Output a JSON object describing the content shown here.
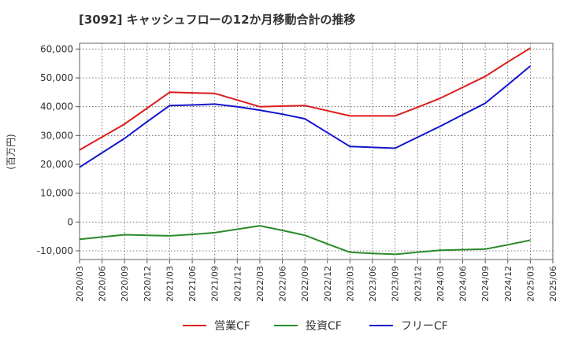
{
  "chart_data": {
    "type": "line",
    "title": "[3092]  キャッシュフローの12か月移動合計の推移",
    "ylabel": "(百万円)",
    "xlabel": "",
    "ylim": [
      -13000,
      62000
    ],
    "yticks": [
      -10000,
      0,
      10000,
      20000,
      30000,
      40000,
      50000,
      60000
    ],
    "ytick_labels": [
      "-10,000",
      "0",
      "10,000",
      "20,000",
      "30,000",
      "40,000",
      "50,000",
      "60,000"
    ],
    "categories": [
      "2020/03",
      "2020/06",
      "2020/09",
      "2020/12",
      "2021/03",
      "2021/06",
      "2021/09",
      "2021/12",
      "2022/03",
      "2022/06",
      "2022/09",
      "2022/12",
      "2023/03",
      "2023/06",
      "2023/09",
      "2023/12",
      "2024/03",
      "2024/06",
      "2024/09",
      "2024/12",
      "2025/03",
      "2025/06"
    ],
    "grid": true,
    "legend_position": "bottom-center",
    "series": [
      {
        "name": "営業CF",
        "color": "#dd1c1c",
        "values": [
          25000,
          29500,
          34000,
          39500,
          45000,
          44800,
          44600,
          42300,
          40000,
          40200,
          40400,
          38600,
          36800,
          36800,
          36800,
          39800,
          42900,
          46700,
          50500,
          55500,
          60300,
          null
        ]
      },
      {
        "name": "投資CF",
        "color": "#2a8a2a",
        "values": [
          -6000,
          -5200,
          -4400,
          -4600,
          -4800,
          -4300,
          -3700,
          -2500,
          -1300,
          -2900,
          -4600,
          -7600,
          -10500,
          -10900,
          -11200,
          -10500,
          -9800,
          -9600,
          -9400,
          -7900,
          -6300,
          null
        ]
      },
      {
        "name": "フリーCF",
        "color": "#1414cc",
        "values": [
          19000,
          24000,
          29000,
          34800,
          40400,
          40600,
          40900,
          40000,
          38800,
          37400,
          35800,
          31000,
          26200,
          25900,
          25600,
          29400,
          33200,
          37200,
          41200,
          47600,
          54100,
          null
        ]
      }
    ]
  }
}
